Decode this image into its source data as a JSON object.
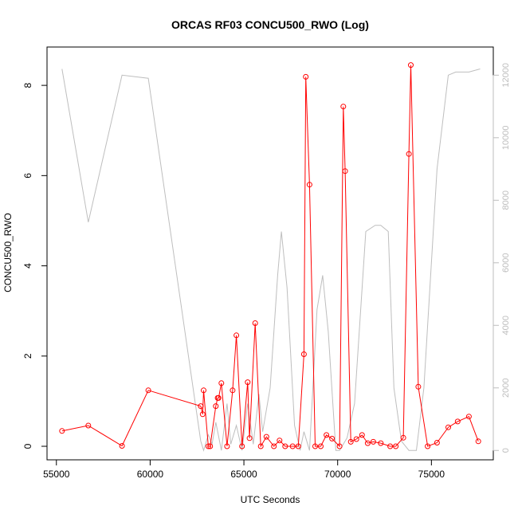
{
  "chart_data": {
    "type": "line",
    "title": "ORCAS RF03 CONCU500_RWO (Log)",
    "xlabel": "UTC Seconds",
    "ylabel": "CONCU500_RWO",
    "xlim": [
      54500,
      78300
    ],
    "ylim": [
      -0.3,
      8.85
    ],
    "y2lim": [
      -300,
      12900
    ],
    "x_ticks": [
      55000,
      60000,
      65000,
      70000,
      75000
    ],
    "y_ticks": [
      0,
      2,
      4,
      6,
      8
    ],
    "y2_ticks": [
      0,
      2000,
      4000,
      6000,
      8000,
      10000,
      12000
    ],
    "colors": {
      "primary": "#ff0000",
      "secondary": "#bebebe",
      "axis": "#000000",
      "secondary_axis": "#bdbdbd"
    },
    "series": [
      {
        "axis": "left",
        "points": [
          [
            55300,
            0.34
          ],
          [
            56700,
            0.46
          ],
          [
            58500,
            0.01
          ],
          [
            59900,
            1.24
          ],
          [
            62700,
            0.89
          ],
          [
            62800,
            0.71
          ],
          [
            62850,
            1.24
          ],
          [
            63100,
            0.0
          ],
          [
            63200,
            0.0
          ],
          [
            63500,
            0.89
          ],
          [
            63600,
            1.07
          ],
          [
            63650,
            1.07
          ],
          [
            63800,
            1.4
          ],
          [
            64100,
            0.0
          ],
          [
            64400,
            1.24
          ],
          [
            64600,
            2.46
          ],
          [
            64900,
            0.0
          ],
          [
            65200,
            1.42
          ],
          [
            65300,
            0.18
          ],
          [
            65600,
            2.73
          ],
          [
            65900,
            0.0
          ],
          [
            66200,
            0.21
          ],
          [
            66600,
            0.0
          ],
          [
            66900,
            0.13
          ],
          [
            67200,
            0.0
          ],
          [
            67600,
            0.0
          ],
          [
            67900,
            0.0
          ],
          [
            68200,
            2.04
          ],
          [
            68300,
            8.19
          ],
          [
            68500,
            5.8
          ],
          [
            68800,
            0.0
          ],
          [
            69100,
            0.0
          ],
          [
            69400,
            0.25
          ],
          [
            69700,
            0.17
          ],
          [
            70100,
            0.0
          ],
          [
            70300,
            7.53
          ],
          [
            70400,
            6.1
          ],
          [
            70700,
            0.1
          ],
          [
            71000,
            0.16
          ],
          [
            71300,
            0.25
          ],
          [
            71600,
            0.07
          ],
          [
            71900,
            0.1
          ],
          [
            72300,
            0.07
          ],
          [
            72800,
            0.0
          ],
          [
            73100,
            0.0
          ],
          [
            73500,
            0.19
          ],
          [
            73800,
            6.48
          ],
          [
            73900,
            8.45
          ],
          [
            74300,
            1.32
          ],
          [
            74800,
            0.0
          ],
          [
            75300,
            0.08
          ],
          [
            75900,
            0.42
          ],
          [
            76400,
            0.55
          ],
          [
            77000,
            0.66
          ],
          [
            77500,
            0.11
          ]
        ]
      },
      {
        "axis": "right",
        "points": [
          [
            55300,
            12200
          ],
          [
            56700,
            7300
          ],
          [
            58500,
            12000
          ],
          [
            59900,
            11900
          ],
          [
            62700,
            300
          ],
          [
            62850,
            0
          ],
          [
            63100,
            500
          ],
          [
            63300,
            200
          ],
          [
            63500,
            900
          ],
          [
            63800,
            0
          ],
          [
            64100,
            1500
          ],
          [
            64300,
            200
          ],
          [
            64600,
            800
          ],
          [
            64900,
            0
          ],
          [
            65200,
            1500
          ],
          [
            65500,
            200
          ],
          [
            65800,
            1800
          ],
          [
            66000,
            600
          ],
          [
            66400,
            2000
          ],
          [
            66800,
            5600
          ],
          [
            67000,
            7000
          ],
          [
            67300,
            5200
          ],
          [
            67700,
            800
          ],
          [
            68000,
            0
          ],
          [
            68200,
            600
          ],
          [
            68500,
            0
          ],
          [
            68900,
            4500
          ],
          [
            69200,
            5600
          ],
          [
            69500,
            3800
          ],
          [
            69900,
            0
          ],
          [
            70100,
            0
          ],
          [
            70500,
            400
          ],
          [
            70900,
            1500
          ],
          [
            71500,
            7000
          ],
          [
            72000,
            7200
          ],
          [
            72300,
            7200
          ],
          [
            72700,
            7000
          ],
          [
            73000,
            2000
          ],
          [
            73400,
            300
          ],
          [
            73800,
            0
          ],
          [
            74200,
            0
          ],
          [
            74600,
            2000
          ],
          [
            75300,
            9000
          ],
          [
            75900,
            12000
          ],
          [
            76300,
            12100
          ],
          [
            77000,
            12100
          ],
          [
            77600,
            12200
          ]
        ]
      }
    ]
  }
}
